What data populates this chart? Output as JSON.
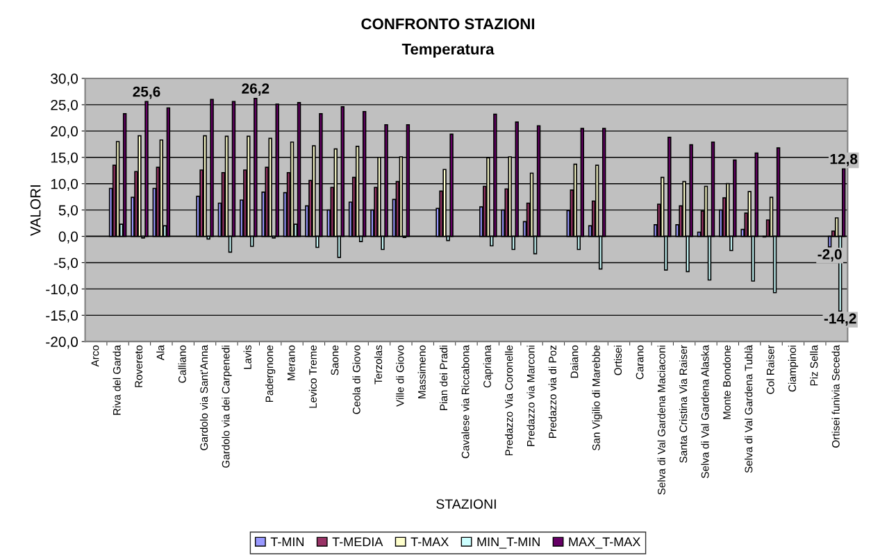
{
  "chart_data": {
    "type": "bar",
    "title": "CONFRONTO STAZIONI",
    "subtitle": "Temperatura",
    "xlabel": "STAZIONI",
    "ylabel": "VALORI",
    "categories": [
      "Arco",
      "Riva del Garda",
      "Rovereto",
      "Ala",
      "Calliano",
      "Gardolo via Sant'Anna",
      "Gardolo via dei Carpenedi",
      "Lavis",
      "Padergnone",
      "Merano",
      "Levico Treme",
      "Saone",
      "Ceola di Giovo",
      "Terzolas",
      "Ville di Giovo",
      "Massimeno",
      "Pian dei Pradi",
      "Cavalese via Riccabona",
      "Capriana",
      "Predazzo Via Coronelle",
      "Predazzo via Marconi",
      "Predazzo via di Poz",
      "Daiano",
      "San Vigilio di Marebbe",
      "Ortisei",
      "Carano",
      "Selva di Val Gardena Maciaconi",
      "Santa Cristina Via Raiser",
      "Selva di Val Gardena Alaska",
      "Monte Bondone",
      "Selva di Val Gardena Tublà",
      "Col Raiser",
      "Ciampinoi",
      "Piz Sella",
      "Ortisei funivia Seceda"
    ],
    "series": [
      {
        "name": "T-MIN",
        "color": "#9999ff",
        "values": [
          null,
          9.1,
          7.4,
          9.1,
          null,
          7.6,
          6.3,
          6.9,
          8.4,
          8.3,
          5.8,
          5.0,
          6.5,
          5.0,
          7.0,
          null,
          5.3,
          null,
          5.6,
          5.0,
          2.8,
          null,
          4.9,
          2.0,
          null,
          null,
          2.2,
          2.2,
          0.8,
          5.0,
          1.3,
          -0.1,
          null,
          null,
          -2.0
        ],
        "value_labels": [
          null,
          null,
          null,
          null,
          null,
          null,
          null,
          null,
          null,
          null,
          null,
          null,
          null,
          null,
          null,
          null,
          null,
          null,
          null,
          null,
          null,
          null,
          null,
          null,
          null,
          null,
          null,
          null,
          null,
          null,
          null,
          null,
          null,
          null,
          "-2,0"
        ]
      },
      {
        "name": "T-MEDIA",
        "color": "#993366",
        "values": [
          null,
          13.5,
          12.3,
          13.1,
          null,
          12.6,
          12.1,
          12.6,
          13.1,
          12.1,
          10.6,
          9.3,
          11.2,
          9.3,
          10.4,
          null,
          8.6,
          null,
          9.5,
          9.0,
          6.3,
          null,
          8.8,
          6.7,
          null,
          null,
          6.1,
          5.8,
          4.8,
          7.3,
          4.4,
          3.1,
          null,
          null,
          1.0
        ]
      },
      {
        "name": "T-MAX",
        "color": "#ffffcc",
        "values": [
          null,
          18.0,
          19.1,
          18.3,
          null,
          19.1,
          19.0,
          19.0,
          18.6,
          17.9,
          17.2,
          16.6,
          17.1,
          15.0,
          15.1,
          null,
          12.7,
          null,
          14.9,
          15.1,
          12.0,
          null,
          13.7,
          13.5,
          null,
          null,
          11.2,
          10.4,
          9.5,
          10.0,
          8.5,
          7.4,
          null,
          null,
          3.5
        ]
      },
      {
        "name": "MIN_T-MIN",
        "color": "#ccffff",
        "values": [
          null,
          2.3,
          -0.3,
          2.0,
          null,
          -0.5,
          -3.0,
          -1.9,
          -0.3,
          2.3,
          -2.1,
          -4.0,
          -1.0,
          -2.5,
          -0.2,
          null,
          -0.8,
          null,
          -1.8,
          -2.5,
          -3.3,
          null,
          -2.5,
          -6.2,
          null,
          null,
          -6.4,
          -6.7,
          -8.3,
          -2.7,
          -8.5,
          -10.7,
          null,
          null,
          -14.2
        ],
        "value_labels": [
          null,
          null,
          null,
          null,
          null,
          null,
          null,
          null,
          null,
          null,
          null,
          null,
          null,
          null,
          null,
          null,
          null,
          null,
          null,
          null,
          null,
          null,
          null,
          null,
          null,
          null,
          null,
          null,
          null,
          null,
          null,
          null,
          null,
          null,
          "-14,2"
        ]
      },
      {
        "name": "MAX_T-MAX",
        "color": "#660066",
        "values": [
          null,
          23.3,
          25.6,
          24.4,
          null,
          26.0,
          25.6,
          26.2,
          25.1,
          25.4,
          23.3,
          24.6,
          23.7,
          21.2,
          21.2,
          null,
          19.4,
          null,
          23.2,
          21.7,
          21.0,
          null,
          20.5,
          20.5,
          null,
          null,
          18.8,
          17.4,
          17.9,
          14.5,
          15.8,
          16.8,
          null,
          null,
          12.8
        ],
        "value_labels": [
          null,
          null,
          "25,6",
          null,
          null,
          null,
          null,
          "26,2",
          null,
          null,
          null,
          null,
          null,
          null,
          null,
          null,
          null,
          null,
          null,
          null,
          null,
          null,
          null,
          null,
          null,
          null,
          null,
          null,
          null,
          null,
          null,
          null,
          null,
          null,
          "12,8"
        ]
      }
    ],
    "ylim": [
      -20,
      30
    ],
    "yticks": [
      {
        "value": -20,
        "label": "-20,0"
      },
      {
        "value": -15,
        "label": "-15,0"
      },
      {
        "value": -10,
        "label": "-10,0"
      },
      {
        "value": -5,
        "label": "-5,0"
      },
      {
        "value": 0,
        "label": "0,0"
      },
      {
        "value": 5,
        "label": "5,0"
      },
      {
        "value": 10,
        "label": "10,0"
      },
      {
        "value": 15,
        "label": "15,0"
      },
      {
        "value": 20,
        "label": "20,0"
      },
      {
        "value": 25,
        "label": "25,0"
      },
      {
        "value": 30,
        "label": "30,0"
      }
    ],
    "grid": "y",
    "legend": "bottom"
  }
}
